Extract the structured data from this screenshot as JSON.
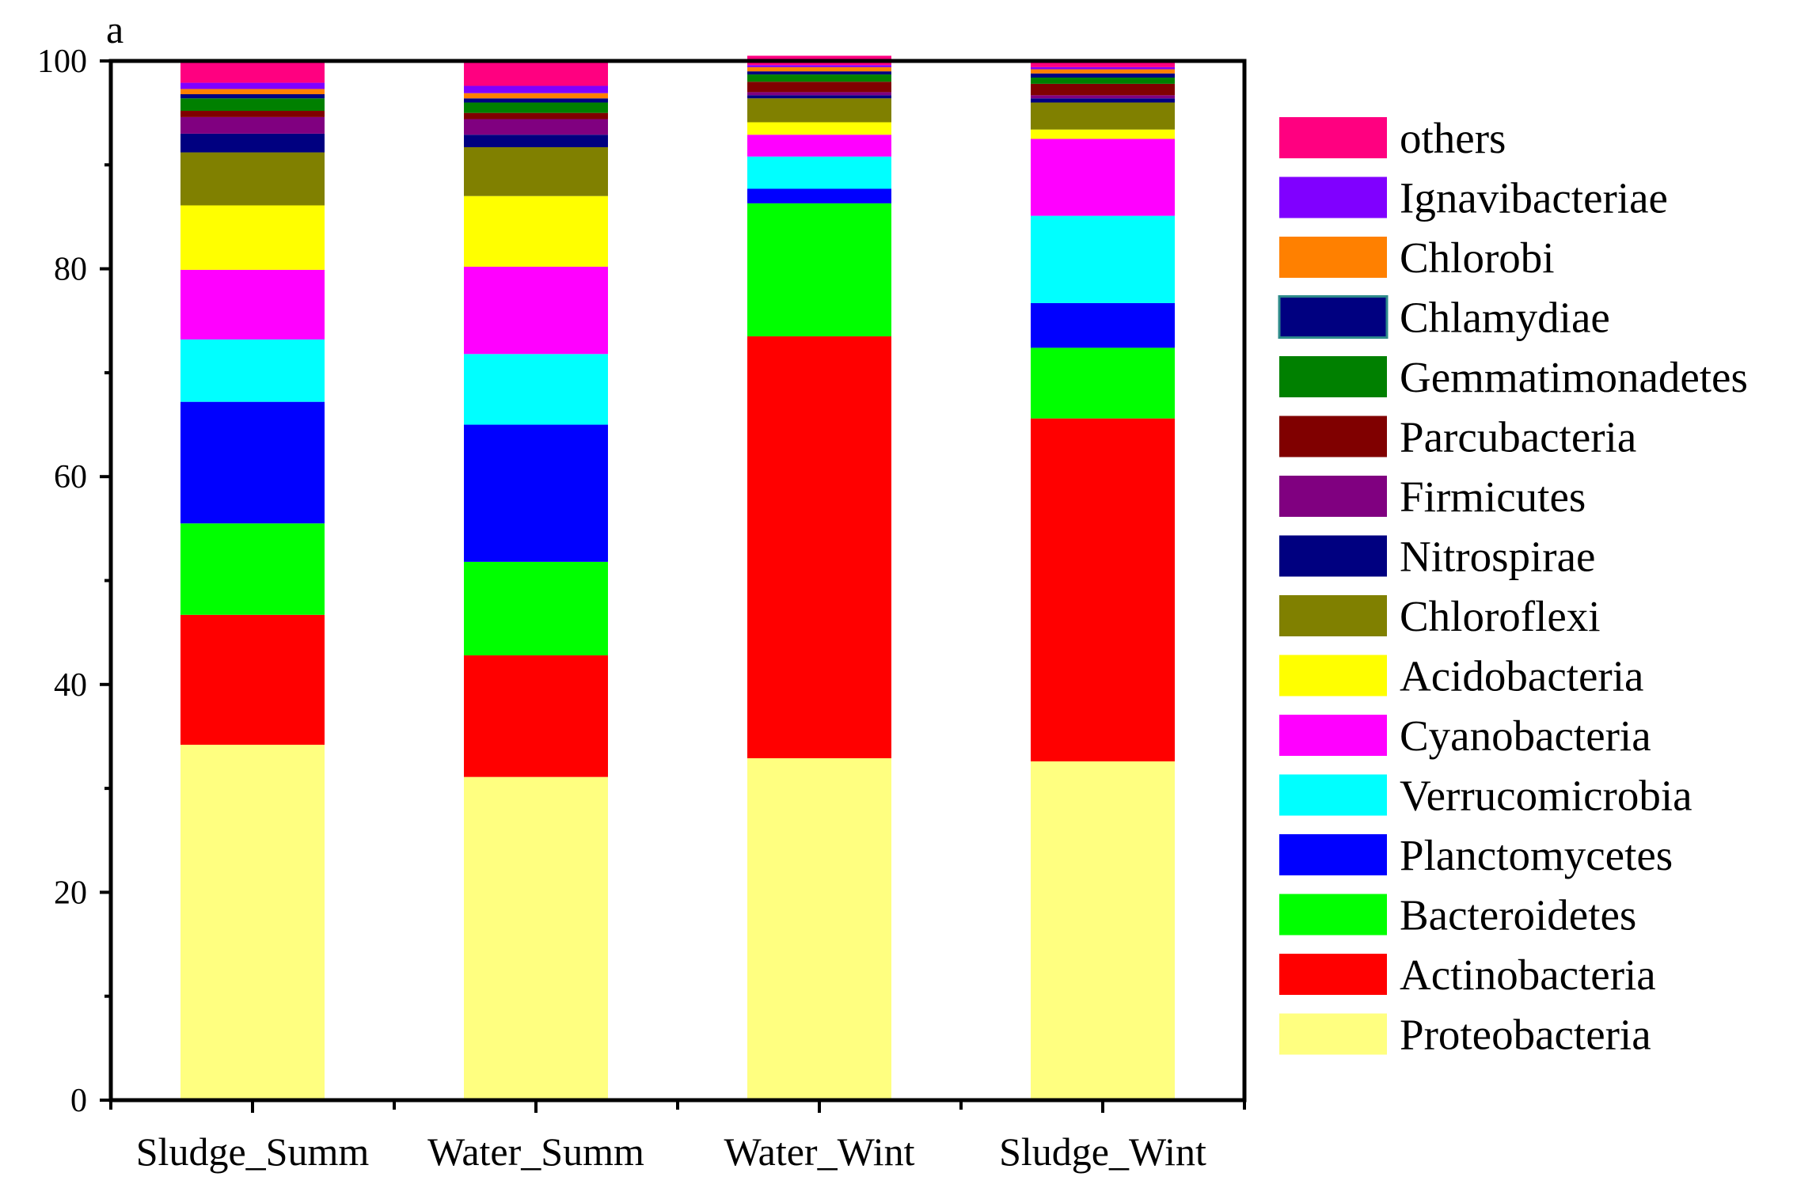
{
  "chart_data": {
    "type": "stacked-bar",
    "panel_label": "a",
    "title": "",
    "xlabel": "",
    "ylabel": "",
    "ylim": [
      0,
      100
    ],
    "y_ticks": [
      0,
      20,
      40,
      60,
      80,
      100
    ],
    "y_tick_labels": [
      "0",
      "20",
      "40",
      "60",
      "80",
      "100"
    ],
    "categories": [
      "Sludge_Summ",
      "Water_Summ",
      "Water_Wint",
      "Sludge_Wint"
    ],
    "legend_position": "right",
    "series": [
      {
        "name": "Proteobacteria",
        "color": "#FFFF80",
        "values": [
          34.2,
          31.1,
          32.9,
          32.6
        ]
      },
      {
        "name": "Actinobacteria",
        "color": "#FF0000",
        "values": [
          12.5,
          11.7,
          40.6,
          33.0
        ]
      },
      {
        "name": "Bacteroidetes",
        "color": "#00FF00",
        "values": [
          8.8,
          9.0,
          12.8,
          6.8
        ]
      },
      {
        "name": "Planctomycetes",
        "color": "#0000FF",
        "values": [
          11.7,
          13.2,
          1.4,
          4.3
        ]
      },
      {
        "name": "Verrucomicrobia",
        "color": "#00FFFF",
        "values": [
          6.0,
          6.8,
          3.1,
          8.4
        ]
      },
      {
        "name": "Cyanobacteria",
        "color": "#FF00FF",
        "values": [
          6.7,
          8.4,
          2.1,
          7.4
        ]
      },
      {
        "name": "Acidobacteria",
        "color": "#FFFF00",
        "values": [
          6.2,
          6.8,
          1.2,
          0.9
        ]
      },
      {
        "name": "Chloroflexi",
        "color": "#808000",
        "values": [
          5.1,
          4.7,
          2.3,
          2.6
        ]
      },
      {
        "name": "Nitrospirae",
        "color": "#000080",
        "values": [
          1.8,
          1.2,
          0.3,
          0.4
        ]
      },
      {
        "name": "Firmicutes",
        "color": "#800080",
        "values": [
          1.6,
          1.5,
          0.3,
          0.3
        ]
      },
      {
        "name": "Parcubacteria",
        "color": "#800000",
        "values": [
          0.6,
          0.6,
          1.0,
          1.1
        ]
      },
      {
        "name": "Gemmatimonadetes",
        "color": "#008000",
        "values": [
          1.2,
          1.0,
          0.7,
          0.6
        ]
      },
      {
        "name": "Chlamydiae",
        "color": "#000080",
        "values": [
          0.4,
          0.4,
          0.3,
          0.4
        ]
      },
      {
        "name": "Chlorobi",
        "color": "#FF8000",
        "values": [
          0.5,
          0.5,
          0.4,
          0.4
        ]
      },
      {
        "name": "Ignavibacteriae",
        "color": "#8000FF",
        "values": [
          0.6,
          0.7,
          0.2,
          0.2
        ]
      },
      {
        "name": "others",
        "color": "#FF0080",
        "values": [
          2.1,
          2.4,
          0.9,
          0.6
        ]
      }
    ]
  }
}
